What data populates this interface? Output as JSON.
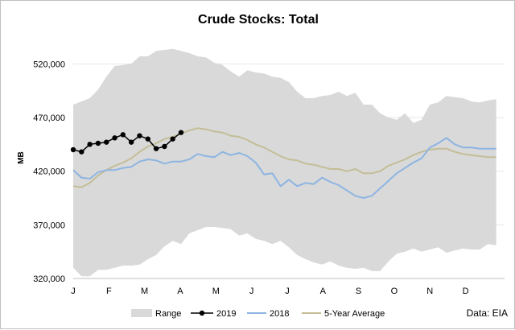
{
  "chart_data": {
    "type": "area",
    "title": "Crude Stocks: Total",
    "ylabel": "MB",
    "xlabel": "",
    "source_note": "Data: EIA",
    "ylim": [
      320000,
      545000
    ],
    "xlim": [
      0,
      52
    ],
    "y_ticks": [
      320000,
      370000,
      420000,
      470000,
      520000
    ],
    "y_tick_labels": [
      "320,000",
      "370,000",
      "420,000",
      "470,000",
      "520,000"
    ],
    "x_ticks": [
      0,
      4.3,
      8.6,
      12.9,
      17.2,
      21.5,
      25.8,
      30.1,
      34.4,
      38.7,
      43,
      47.3
    ],
    "x_tick_labels": [
      "J",
      "F",
      "M",
      "A",
      "M",
      "J",
      "J",
      "A",
      "S",
      "O",
      "N",
      "D"
    ],
    "grid": "horizontal",
    "legend": "bottom",
    "legend_entries": [
      "Range",
      "2019",
      "2018",
      "5-Year Average"
    ],
    "colors": {
      "range": "#d9d9d9",
      "y2019": "#000000",
      "y2018": "#8db4e2",
      "avg": "#c4bd97",
      "grid": "#e6e6e6",
      "axis": "#bfbfbf"
    },
    "range_high": [
      482000,
      485000,
      488000,
      496000,
      508000,
      518000,
      519000,
      520000,
      527000,
      527000,
      532000,
      533000,
      534000,
      532000,
      530000,
      527000,
      526000,
      521000,
      519000,
      513000,
      508000,
      514000,
      512000,
      511000,
      508000,
      507000,
      503000,
      494000,
      488000,
      488000,
      490000,
      491000,
      494000,
      490000,
      493000,
      482000,
      482000,
      474000,
      470000,
      468000,
      474000,
      465000,
      468000,
      482000,
      484000,
      490000,
      489000,
      488000,
      485000,
      484000,
      486000,
      487000
    ],
    "range_low": [
      330000,
      322000,
      322000,
      328000,
      328000,
      330000,
      332000,
      332000,
      333000,
      338000,
      342000,
      350000,
      355000,
      352000,
      362000,
      365000,
      368000,
      368000,
      367000,
      366000,
      360000,
      362000,
      357000,
      355000,
      352000,
      355000,
      349000,
      342000,
      338000,
      335000,
      333000,
      336000,
      332000,
      330000,
      329000,
      330000,
      327000,
      327000,
      336000,
      343000,
      345000,
      348000,
      345000,
      347000,
      349000,
      344000,
      346000,
      348000,
      347000,
      347000,
      352000,
      351000
    ],
    "series": [
      {
        "name": "2019",
        "x": [
          0,
          1,
          2,
          3,
          4,
          5,
          6,
          7,
          8,
          9,
          10,
          11,
          12,
          13
        ],
        "values": [
          440000,
          438000,
          445000,
          446000,
          447000,
          451000,
          454000,
          447000,
          453000,
          450000,
          441000,
          443000,
          450000,
          456000
        ]
      },
      {
        "name": "2018",
        "x": [
          0,
          1,
          2,
          3,
          4,
          5,
          6,
          7,
          8,
          9,
          10,
          11,
          12,
          13,
          14,
          15,
          16,
          17,
          18,
          19,
          20,
          21,
          22,
          23,
          24,
          25,
          26,
          27,
          28,
          29,
          30,
          31,
          32,
          33,
          34,
          35,
          36,
          37,
          38,
          39,
          40,
          41,
          42,
          43,
          44,
          45,
          46,
          47,
          48,
          49,
          50,
          51
        ],
        "values": [
          421000,
          414000,
          413000,
          419000,
          421000,
          421000,
          423000,
          424000,
          429000,
          431000,
          430000,
          427000,
          429000,
          429000,
          431000,
          436000,
          434000,
          433000,
          438000,
          435000,
          437000,
          434000,
          428000,
          417000,
          418000,
          406000,
          412000,
          406000,
          409000,
          408000,
          414000,
          410000,
          407000,
          402000,
          397000,
          395000,
          397000,
          404000,
          411000,
          418000,
          423000,
          428000,
          432000,
          442000,
          446000,
          451000,
          445000,
          442000,
          442000,
          441000,
          441000,
          441000
        ]
      },
      {
        "name": "5-Year Average",
        "x": [
          0,
          1,
          2,
          3,
          4,
          5,
          6,
          7,
          8,
          9,
          10,
          11,
          12,
          13,
          14,
          15,
          16,
          17,
          18,
          19,
          20,
          21,
          22,
          23,
          24,
          25,
          26,
          27,
          28,
          29,
          30,
          31,
          32,
          33,
          34,
          35,
          36,
          37,
          38,
          39,
          40,
          41,
          42,
          43,
          44,
          45,
          46,
          47,
          48,
          49,
          50,
          51
        ],
        "values": [
          406000,
          405000,
          409000,
          416000,
          421000,
          425000,
          428000,
          432000,
          438000,
          443000,
          446000,
          450000,
          452000,
          455000,
          458000,
          460000,
          459000,
          457000,
          456000,
          453000,
          452000,
          449000,
          445000,
          442000,
          438000,
          434000,
          431000,
          430000,
          427000,
          426000,
          424000,
          422000,
          422000,
          420000,
          422000,
          418000,
          418000,
          420000,
          425000,
          428000,
          431000,
          435000,
          438000,
          440000,
          441000,
          441000,
          438000,
          436000,
          435000,
          434000,
          433000,
          433000
        ]
      }
    ]
  }
}
